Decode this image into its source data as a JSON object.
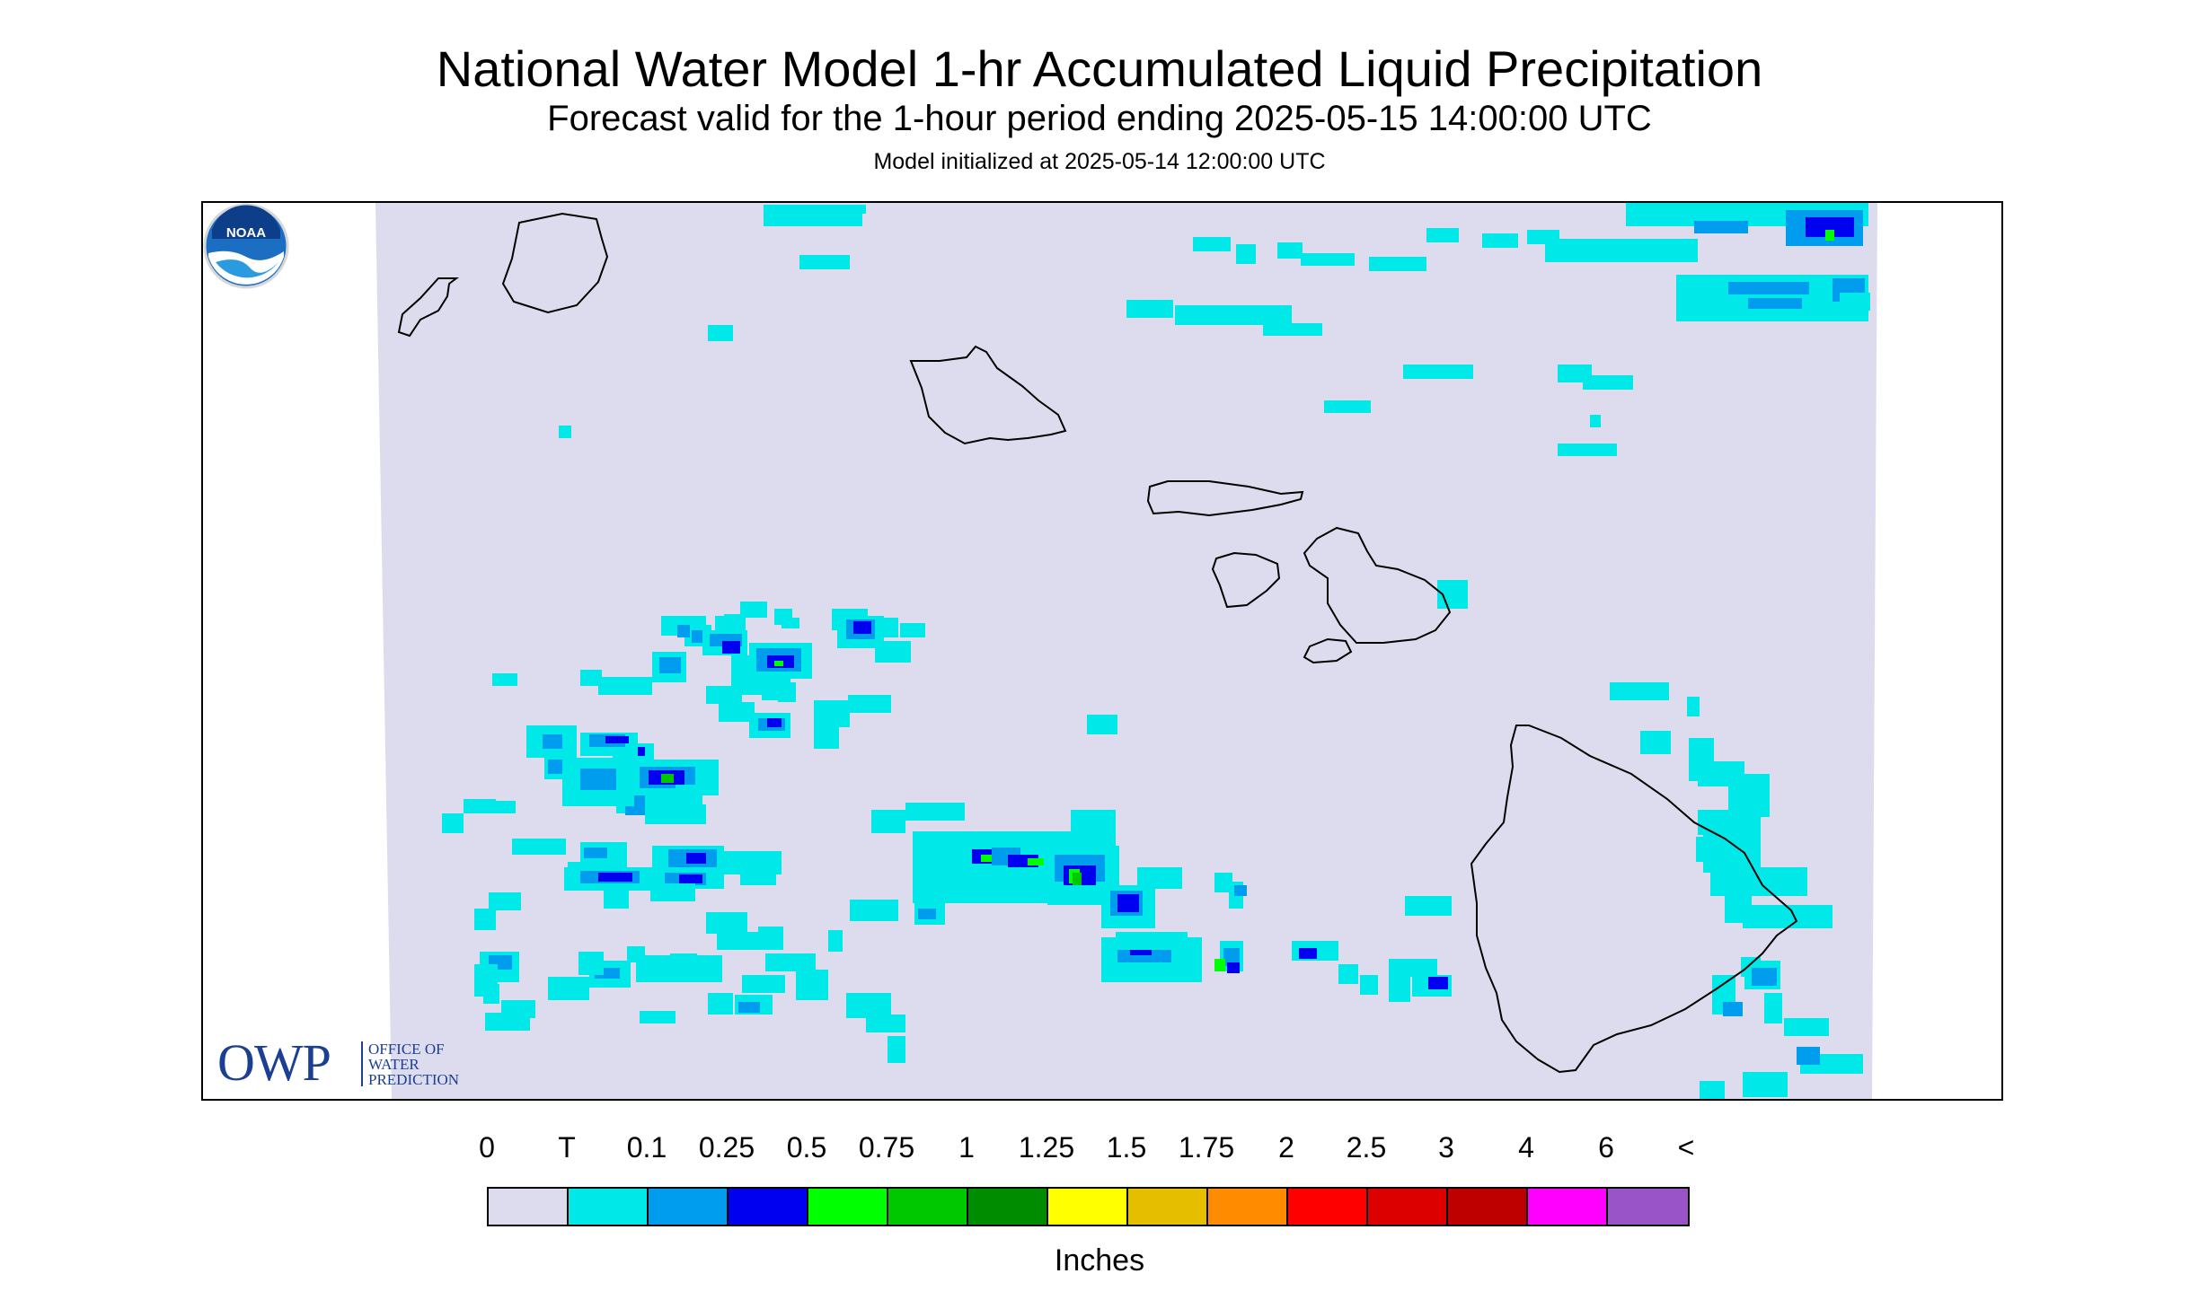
{
  "header": {
    "title": "National Water Model 1-hr Accumulated Liquid Precipitation",
    "subtitle": "Forecast valid for the 1-hour period ending 2025-05-15 14:00:00 UTC",
    "init_line": "Model initialized at 2025-05-14 12:00:00 UTC"
  },
  "logos": {
    "owp_big": "OWP",
    "owp_line1": "OFFICE OF",
    "owp_line2": "WATER",
    "owp_line3": "PREDICTION",
    "noaa_text": "NOAA"
  },
  "legend": {
    "labels": [
      "0",
      "T",
      "0.1",
      "0.25",
      "0.5",
      "0.75",
      "1",
      "1.25",
      "1.5",
      "1.75",
      "2",
      "2.5",
      "3",
      "4",
      "6",
      "<"
    ],
    "colors": [
      "#dcdcee",
      "#00e8e8",
      "#009dee",
      "#0000f0",
      "#00ff00",
      "#00c800",
      "#008c00",
      "#ffff00",
      "#e6be00",
      "#ff8c00",
      "#ff0000",
      "#dc0000",
      "#be0000",
      "#ff00ff",
      "#9955c8"
    ],
    "units": "Inches"
  },
  "map": {
    "background_color": "#dcdcee",
    "islands": [
      "Niihau",
      "Kauai",
      "Oahu",
      "Molokai",
      "Lanai",
      "Maui",
      "Kahoolawe",
      "Hawaii"
    ]
  }
}
